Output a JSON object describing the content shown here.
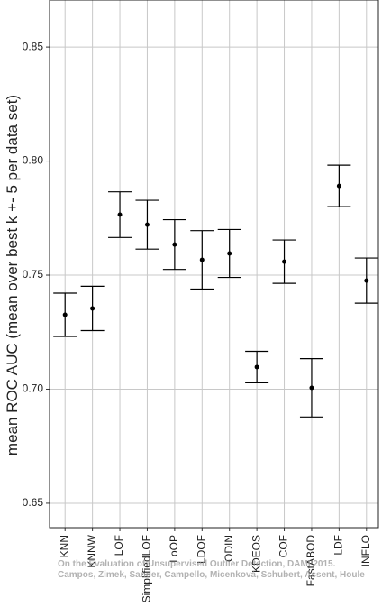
{
  "chart_data": {
    "type": "errorbar",
    "y_label": "mean ROC AUC (mean over best k +- 5 per data set)",
    "categories": [
      "KNN",
      "KNNW",
      "LOF",
      "SimplifiedLOF",
      "LoOP",
      "LDOF",
      "ODIN",
      "KDEOS",
      "COF",
      "FastABOD",
      "LDF",
      "INFLO"
    ],
    "values": [
      0.7326,
      0.7354,
      0.7765,
      0.7721,
      0.7634,
      0.7567,
      0.7595,
      0.7097,
      0.7559,
      0.7006,
      0.7891,
      0.7476
    ],
    "errors": [
      0.0095,
      0.0097,
      0.01,
      0.0107,
      0.0109,
      0.0128,
      0.0105,
      0.0069,
      0.0095,
      0.0128,
      0.0091,
      0.0099
    ],
    "color": "#000000",
    "ylim": [
      0.6393,
      0.8706
    ],
    "yticks": [
      0.65,
      {
        "value": 0.7,
        "label": "0.70"
      },
      0.75,
      {
        "value": 0.8,
        "label": "0.80"
      },
      0.85
    ],
    "grid": true,
    "annotations": [
      "On the Evaluation of Unsupervised Outlier Detection, DAMI 2015.",
      "Campos, Zimek, Sander, Campello, Micenková, Schubert, Assent, Houle"
    ]
  }
}
